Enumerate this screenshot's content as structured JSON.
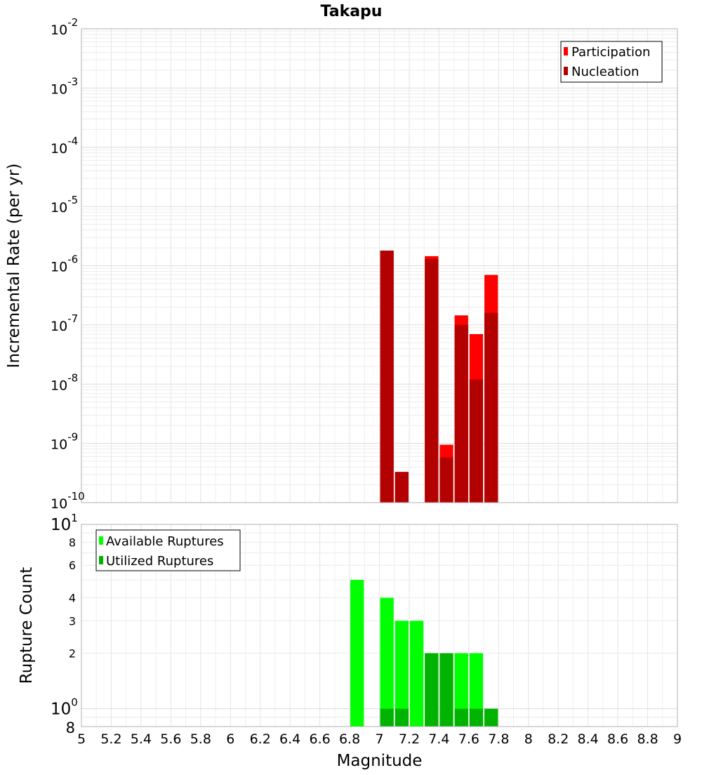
{
  "chart_data": [
    {
      "type": "bar",
      "title": "Takapu",
      "xlabel": "",
      "ylabel": "Incremental Rate (per yr)",
      "yscale": "log",
      "xlim": [
        5,
        9
      ],
      "ylim": [
        1e-10,
        0.01
      ],
      "y_tick_bases": [
        "10",
        "10",
        "10",
        "10",
        "10",
        "10",
        "10",
        "10",
        "10"
      ],
      "y_tick_exponents": [
        "-10",
        "-9",
        "-8",
        "-7",
        "-6",
        "-5",
        "-4",
        "-3",
        "-2"
      ],
      "bar_width": 0.1,
      "legend_position": "top-right",
      "series": [
        {
          "name": "Participation",
          "color": "#ff0000",
          "x": [
            7.05,
            7.15,
            7.35,
            7.45,
            7.55,
            7.65,
            7.75
          ],
          "values": [
            1.8e-06,
            3.3e-10,
            1.45e-06,
            9.5e-10,
            1.45e-07,
            7e-08,
            7e-07
          ]
        },
        {
          "name": "Nucleation",
          "color": "#b30000",
          "x": [
            7.05,
            7.15,
            7.35,
            7.45,
            7.55,
            7.65,
            7.75
          ],
          "values": [
            1.8e-06,
            3.3e-10,
            1.3e-06,
            5.8e-10,
            1e-07,
            1.2e-08,
            1.6e-07
          ]
        }
      ]
    },
    {
      "type": "bar",
      "title": "",
      "xlabel": "Magnitude",
      "ylabel": "Rupture Count",
      "yscale": "log",
      "xlim": [
        5,
        9
      ],
      "ylim": [
        0.8,
        10
      ],
      "x_ticks": [
        "5",
        "5.2",
        "5.4",
        "5.6",
        "5.8",
        "6",
        "6.2",
        "6.4",
        "6.6",
        "6.8",
        "7",
        "7.2",
        "7.4",
        "7.6",
        "7.8",
        "8",
        "8.2",
        "8.4",
        "8.6",
        "8.8",
        "9"
      ],
      "y_major_ticks": [
        {
          "value": 1,
          "base": "10",
          "exp": "0"
        },
        {
          "value": 10,
          "base": "10",
          "exp": "1"
        }
      ],
      "y_minor_ticks": [
        "2",
        "3",
        "4",
        "6",
        "8"
      ],
      "y_bottom_label": "8",
      "bar_width": 0.1,
      "legend_position": "top-left",
      "series": [
        {
          "name": "Available Ruptures",
          "color": "#00ff00",
          "x": [
            6.85,
            7.05,
            7.15,
            7.25,
            7.35,
            7.45,
            7.55,
            7.65,
            7.75
          ],
          "values": [
            5,
            4,
            3,
            3,
            2,
            2,
            2,
            2,
            1
          ]
        },
        {
          "name": "Utilized Ruptures",
          "color": "#00b300",
          "x": [
            7.05,
            7.15,
            7.35,
            7.45,
            7.55,
            7.65,
            7.75
          ],
          "values": [
            1,
            1,
            2,
            2,
            1,
            1,
            1
          ]
        }
      ]
    }
  ]
}
